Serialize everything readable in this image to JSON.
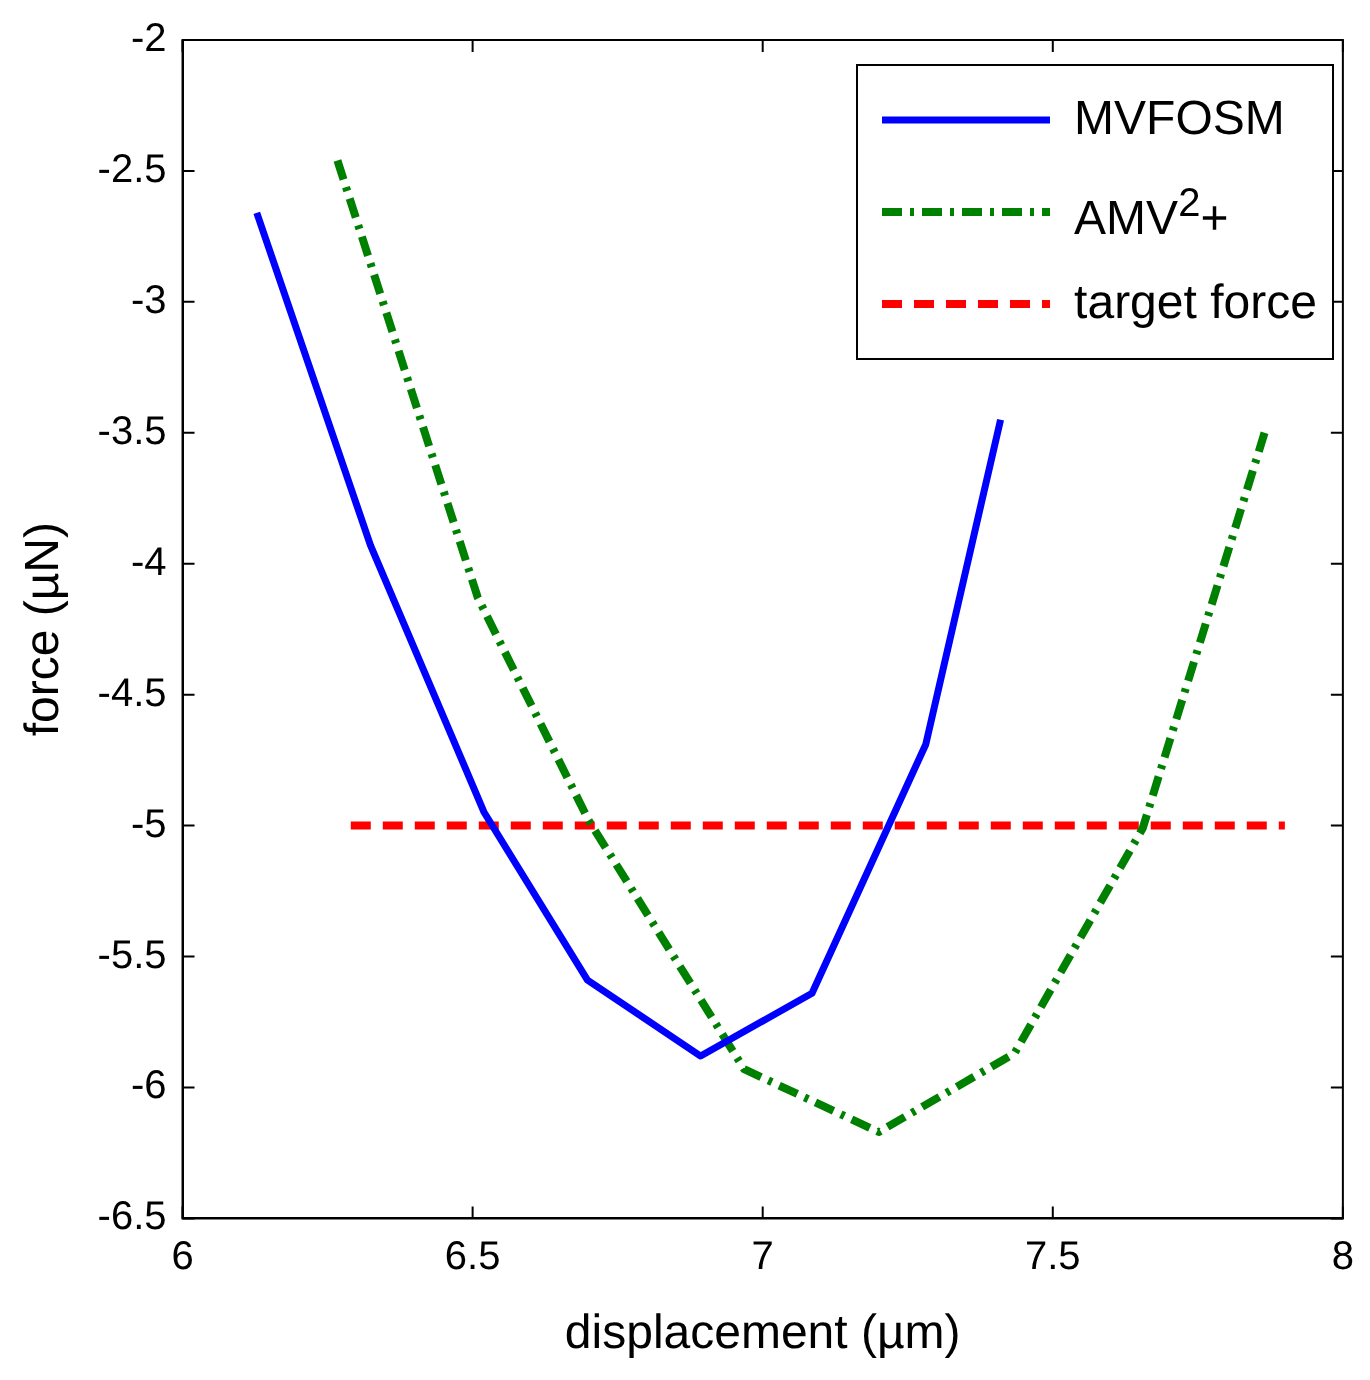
{
  "chart_data": {
    "type": "line",
    "xlabel": "displacement (µm)",
    "ylabel": "force (µN)",
    "xlim": [
      6,
      8
    ],
    "xticks": [
      6,
      6.5,
      7,
      7.5,
      8
    ],
    "ylim": [
      -6.5,
      -2
    ],
    "yticks": [
      -6.5,
      -6,
      -5.5,
      -5,
      -4.5,
      -4,
      -3.5,
      -3,
      -2.5,
      -2
    ],
    "grid": false,
    "legend": "top right",
    "marker": "none",
    "series": [
      {
        "name": "MVFOSM",
        "color": "#0000ff",
        "line_style": "solid",
        "x": [
          6.128,
          6.324,
          6.52,
          6.698,
          6.893,
          7.085,
          7.281,
          7.41
        ],
        "values": [
          -2.66,
          -3.93,
          -4.95,
          -5.59,
          -5.88,
          -5.64,
          -4.69,
          -3.45
        ]
      },
      {
        "name": "AMV$^{2}$+",
        "color": "#008000",
        "line_style": "dashdot",
        "x": [
          6.267,
          6.509,
          6.7,
          6.968,
          7.2,
          7.434,
          7.655,
          7.865
        ],
        "values": [
          -2.46,
          -4.13,
          -4.98,
          -5.93,
          -6.17,
          -5.87,
          -5.01,
          -3.5
        ]
      },
      {
        "name": "target force",
        "color": "#ff0000",
        "line_style": "dashed",
        "x": [
          6.29,
          7.9
        ],
        "values": [
          -5,
          -5
        ]
      }
    ]
  }
}
